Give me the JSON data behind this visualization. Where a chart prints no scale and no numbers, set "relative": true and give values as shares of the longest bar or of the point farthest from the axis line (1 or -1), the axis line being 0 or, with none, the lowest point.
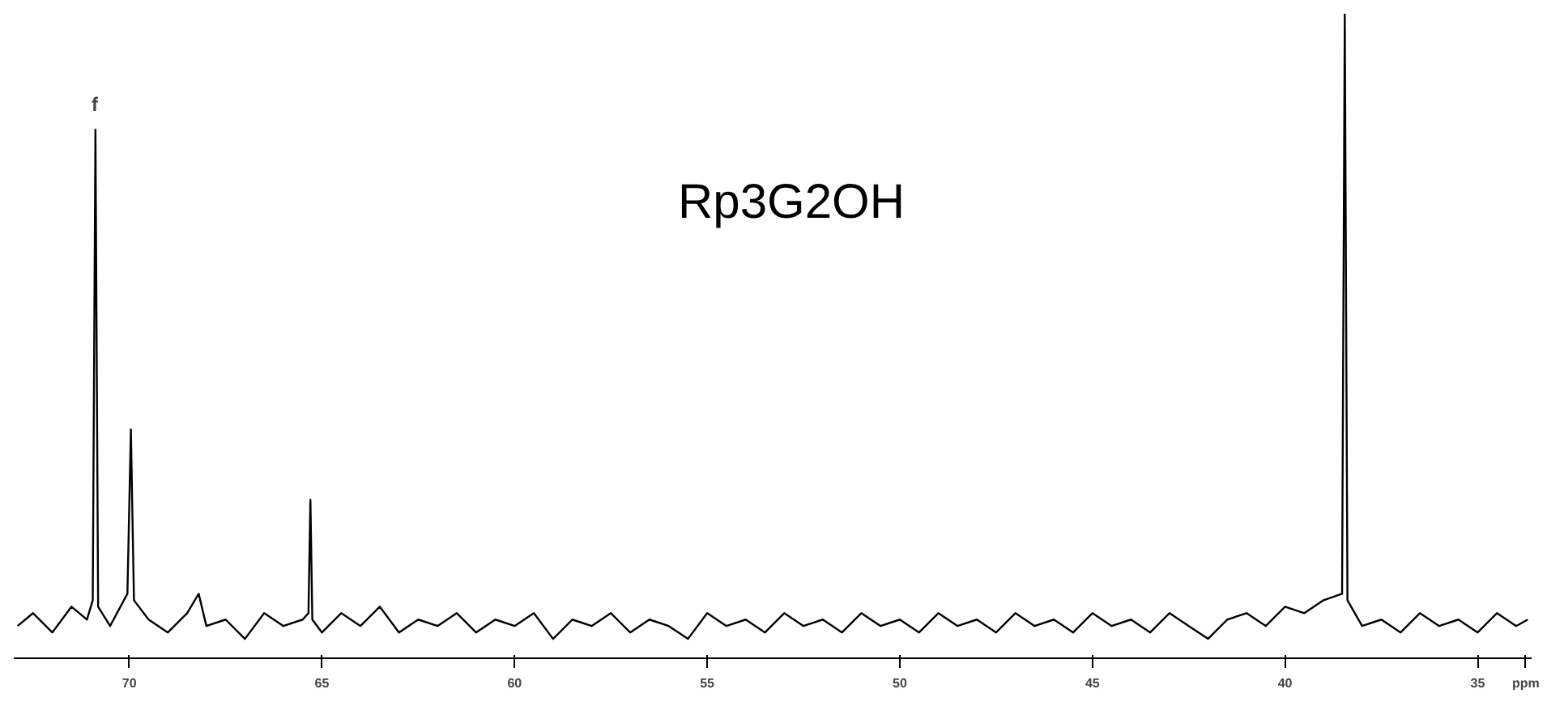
{
  "chart_data": {
    "type": "line",
    "title": "Rp3G2OH",
    "relative": true,
    "color": "#000000",
    "grid": false,
    "legend": false,
    "marker": "none",
    "line_style": "solid",
    "xlim": [
      73.0,
      33.6
    ],
    "xticks": [
      70,
      65,
      60,
      55,
      50,
      45,
      40,
      35,
      {
        "value": 33.75,
        "label": "ppm"
      }
    ],
    "annotations": [
      "f"
    ],
    "x": [
      72.9,
      72.5,
      72.0,
      71.5,
      71.1,
      70.95,
      70.88,
      70.81,
      70.5,
      70.05,
      69.96,
      69.88,
      69.5,
      69.0,
      68.5,
      68.2,
      68.0,
      67.5,
      67.0,
      66.5,
      66.0,
      65.5,
      65.35,
      65.3,
      65.25,
      65.0,
      64.5,
      64.0,
      63.5,
      63.0,
      62.5,
      62.0,
      61.5,
      61.0,
      60.5,
      60.0,
      59.5,
      59.0,
      58.5,
      58.0,
      57.5,
      57.0,
      56.5,
      56.0,
      55.5,
      55.0,
      54.5,
      54.0,
      53.5,
      53.0,
      52.5,
      52.0,
      51.5,
      51.0,
      50.5,
      50.0,
      49.5,
      49.0,
      48.5,
      48.0,
      47.5,
      47.0,
      46.5,
      46.0,
      45.5,
      45.0,
      44.5,
      44.0,
      43.5,
      43.0,
      42.5,
      42.0,
      41.5,
      41.0,
      40.5,
      40.0,
      39.5,
      39.0,
      38.52,
      38.45,
      38.38,
      38.0,
      37.5,
      37.0,
      36.5,
      36.0,
      35.5,
      35.0,
      34.5,
      34.0,
      33.7
    ],
    "values": [
      0.05,
      0.07,
      0.04,
      0.08,
      0.06,
      0.09,
      0.82,
      0.08,
      0.05,
      0.1,
      0.355,
      0.09,
      0.06,
      0.04,
      0.07,
      0.1,
      0.05,
      0.06,
      0.03,
      0.07,
      0.05,
      0.06,
      0.07,
      0.246,
      0.06,
      0.04,
      0.07,
      0.05,
      0.08,
      0.04,
      0.06,
      0.05,
      0.07,
      0.04,
      0.06,
      0.05,
      0.07,
      0.03,
      0.06,
      0.05,
      0.07,
      0.04,
      0.06,
      0.05,
      0.03,
      0.07,
      0.05,
      0.06,
      0.04,
      0.07,
      0.05,
      0.06,
      0.04,
      0.07,
      0.05,
      0.06,
      0.04,
      0.07,
      0.05,
      0.06,
      0.04,
      0.07,
      0.05,
      0.06,
      0.04,
      0.07,
      0.05,
      0.06,
      0.04,
      0.07,
      0.05,
      0.03,
      0.06,
      0.07,
      0.05,
      0.08,
      0.07,
      0.09,
      0.1,
      1,
      0.09,
      0.05,
      0.06,
      0.04,
      0.07,
      0.05,
      0.06,
      0.04,
      0.07,
      0.05,
      0.06
    ]
  }
}
